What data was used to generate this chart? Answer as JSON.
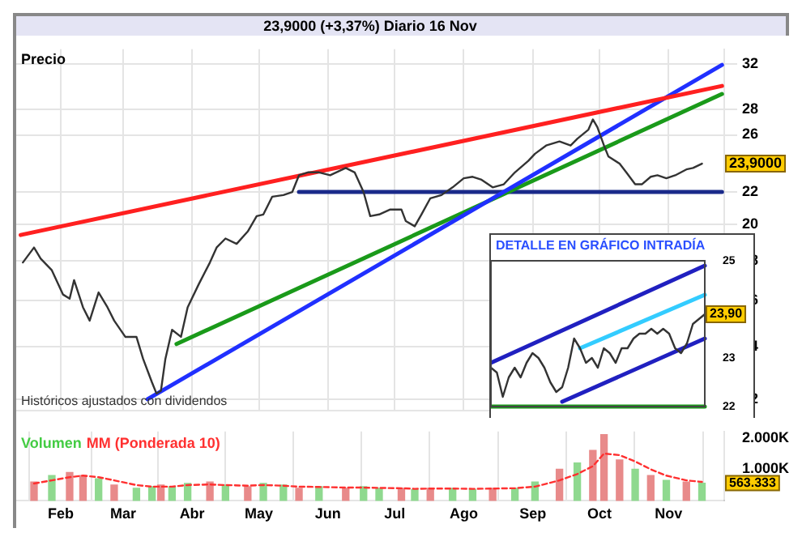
{
  "chart_data": [
    {
      "type": "line",
      "title": "23,9000 (+3,37%)   Diario  16 Nov",
      "ylabel": "Precio",
      "log": "y",
      "grid": true,
      "tick_labels": "y",
      "marker": "none",
      "xlim": [
        "--01-12",
        "--11-26"
      ],
      "xticks": [
        {
          "value": "--02-01",
          "label": "Feb"
        },
        {
          "value": "--03-01",
          "label": "Mar"
        },
        {
          "value": "--04-01",
          "label": "Abr"
        },
        {
          "value": "--05-01",
          "label": "May"
        },
        {
          "value": "--06-01",
          "label": "Jun"
        },
        {
          "value": "--07-01",
          "label": "Jul"
        },
        {
          "value": "--08-01",
          "label": "Ago"
        },
        {
          "value": "--09-01",
          "label": "Sep"
        },
        {
          "value": "--10-01",
          "label": "Oct"
        },
        {
          "value": "--11-01",
          "label": "Nov"
        }
      ],
      "ylim": [
        11.6,
        33.4
      ],
      "yticks": [
        12,
        14,
        16,
        18,
        20,
        22,
        26,
        28,
        32
      ],
      "series": [
        {
          "color": "#333333",
          "x": [
            "--01-15",
            "--01-20",
            "--01-23",
            "--01-28",
            "--02-02",
            "--02-05",
            "--02-07",
            "--02-11",
            "--02-14",
            "--02-18",
            "--02-22",
            "--02-25",
            "--03-02",
            "--03-07",
            "--03-10",
            "--03-14",
            "--03-16",
            "--03-18",
            "--03-20",
            "--03-23",
            "--03-27",
            "--03-30",
            "--04-04",
            "--04-09",
            "--04-12",
            "--04-16",
            "--04-21",
            "--04-26",
            "--04-30",
            "--05-03",
            "--05-07",
            "--05-12",
            "--05-16",
            "--05-19",
            "--05-23",
            "--05-28",
            "--06-02",
            "--06-09",
            "--06-13",
            "--06-17",
            "--06-20",
            "--06-24",
            "--06-29",
            "--07-04",
            "--07-06",
            "--07-10",
            "--07-13",
            "--07-17",
            "--07-22",
            "--07-27",
            "--08-01",
            "--08-05",
            "--08-09",
            "--08-14",
            "--08-19",
            "--08-24",
            "--08-30",
            "--09-02",
            "--09-07",
            "--09-13",
            "--09-18",
            "--09-21",
            "--09-26",
            "--09-28",
            "--09-30",
            "--10-03",
            "--10-05",
            "--10-10",
            "--10-13",
            "--10-17",
            "--10-20",
            "--10-24",
            "--10-27",
            "--10-31",
            "--11-04",
            "--11-09",
            "--11-12",
            "--11-16"
          ],
          "values": [
            17.9,
            18.7,
            18.1,
            17.5,
            16.3,
            16.1,
            17.0,
            15.7,
            15.1,
            16.4,
            15.7,
            15.1,
            14.4,
            14.4,
            13.5,
            12.6,
            12.2,
            12.3,
            13.5,
            14.7,
            14.4,
            15.7,
            16.8,
            17.9,
            18.7,
            19.2,
            18.9,
            19.6,
            20.5,
            20.6,
            21.7,
            21.8,
            22.0,
            23.1,
            23.3,
            23.3,
            23.1,
            23.6,
            23.3,
            22.0,
            20.5,
            20.6,
            20.9,
            20.9,
            20.2,
            19.9,
            20.6,
            21.6,
            21.8,
            22.3,
            22.9,
            23.0,
            22.8,
            22.3,
            22.5,
            23.3,
            24.1,
            24.6,
            25.2,
            25.5,
            25.2,
            25.7,
            26.4,
            27.2,
            26.6,
            25.2,
            24.4,
            23.9,
            23.3,
            22.5,
            22.5,
            23.0,
            23.1,
            22.9,
            23.1,
            23.5,
            23.6,
            23.9
          ]
        },
        {
          "color": "#ff2020",
          "x": [
            "--01-14",
            "--11-25"
          ],
          "values": [
            19.4,
            30.0
          ]
        },
        {
          "color": "#2030ff",
          "x": [
            "--03-12",
            "--11-25"
          ],
          "values": [
            12.0,
            31.9
          ]
        },
        {
          "color": "#1a9a1a",
          "x": [
            "--03-25",
            "--11-25"
          ],
          "values": [
            14.1,
            29.3
          ]
        },
        {
          "color": "#1a2a8a",
          "x": [
            "--05-19",
            "--11-25"
          ],
          "values": [
            22.0,
            22.0
          ]
        }
      ],
      "annotations": [
        "23,9000",
        "Históricos ajustados con dividendos"
      ]
    },
    {
      "type": "line",
      "title": "DETALLE EN GRÁFICO INTRADÍA",
      "tick_labels": "y",
      "marker": "none",
      "categories": [
        null,
        null,
        null,
        null,
        null,
        null,
        null,
        null,
        null,
        null,
        null,
        null,
        null,
        null,
        null,
        null,
        null,
        null,
        null,
        null,
        null,
        null,
        null,
        null,
        null,
        null,
        null,
        null,
        null,
        null,
        null,
        null,
        null,
        null,
        null,
        null,
        null
      ],
      "ylim": [
        22,
        25
      ],
      "yticks": [
        22,
        23,
        25
      ],
      "series": [
        {
          "color": "#333333",
          "values": [
            22.8,
            22.7,
            22.2,
            22.6,
            22.8,
            22.6,
            22.9,
            23.1,
            23.0,
            22.8,
            22.5,
            22.3,
            22.4,
            22.8,
            23.4,
            23.2,
            22.9,
            23.0,
            22.8,
            23.2,
            23.1,
            22.9,
            23.2,
            23.2,
            23.4,
            23.5,
            23.5,
            23.6,
            23.5,
            23.6,
            23.5,
            23.2,
            23.1,
            23.3,
            23.7,
            23.8,
            23.9
          ]
        },
        {
          "color": "#2020c0",
          "values": [
            22.9,
            null,
            null,
            null,
            null,
            null,
            null,
            null,
            null,
            null,
            null,
            null,
            null,
            null,
            null,
            null,
            null,
            null,
            null,
            null,
            null,
            null,
            null,
            null,
            null,
            null,
            null,
            null,
            null,
            null,
            null,
            null,
            null,
            null,
            null,
            null,
            24.9
          ]
        },
        {
          "color": "#2020c0",
          "values": [
            null,
            null,
            null,
            null,
            null,
            null,
            null,
            null,
            null,
            null,
            null,
            null,
            22.1,
            null,
            null,
            null,
            null,
            null,
            null,
            null,
            null,
            null,
            null,
            null,
            null,
            null,
            null,
            null,
            null,
            null,
            null,
            null,
            null,
            null,
            null,
            null,
            23.4
          ]
        },
        {
          "color": "#33ccff",
          "values": [
            null,
            null,
            null,
            null,
            null,
            null,
            null,
            null,
            null,
            null,
            null,
            null,
            null,
            null,
            null,
            23.2,
            null,
            null,
            null,
            null,
            null,
            null,
            null,
            null,
            null,
            null,
            null,
            null,
            null,
            null,
            null,
            null,
            null,
            null,
            null,
            null,
            24.3
          ]
        },
        {
          "color": "#1a9a1a",
          "values": [
            22.0,
            null,
            null,
            null,
            null,
            null,
            null,
            null,
            null,
            null,
            null,
            null,
            null,
            null,
            null,
            null,
            null,
            null,
            null,
            null,
            null,
            null,
            null,
            null,
            null,
            null,
            null,
            null,
            null,
            null,
            null,
            null,
            null,
            null,
            null,
            null,
            22.0
          ]
        }
      ],
      "annotations": [
        "23,90"
      ]
    },
    {
      "type": "bar",
      "grid": "x",
      "marker": "none",
      "xlim": [
        "--01-12",
        "--11-26"
      ],
      "xticks": [
        {
          "value": "--02-01",
          "label": "Feb"
        },
        {
          "value": "--03-01",
          "label": "Mar"
        },
        {
          "value": "--04-01",
          "label": "Abr"
        },
        {
          "value": "--05-01",
          "label": "May"
        },
        {
          "value": "--06-01",
          "label": "Jun"
        },
        {
          "value": "--07-01",
          "label": "Jul"
        },
        {
          "value": "--08-01",
          "label": "Ago"
        },
        {
          "value": "--09-01",
          "label": "Sep"
        },
        {
          "value": "--10-01",
          "label": "Oct"
        },
        {
          "value": "--11-01",
          "label": "Nov"
        }
      ],
      "ylim": [
        0,
        2200
      ],
      "yticks": [
        {
          "value": 1000,
          "label": "1.000K"
        },
        {
          "value": 2000,
          "label": "2.000K"
        }
      ],
      "series": [
        {
          "name": "Volumen",
          "color": "#44cc44",
          "x": [
            "--01-20",
            "--01-28",
            "--02-05",
            "--02-11",
            "--02-18",
            "--02-25",
            "--03-07",
            "--03-14",
            "--03-18",
            "--03-23",
            "--03-30",
            "--04-09",
            "--04-16",
            "--04-26",
            "--05-03",
            "--05-12",
            "--05-19",
            "--05-28",
            "--06-09",
            "--06-17",
            "--06-24",
            "--07-04",
            "--07-10",
            "--07-17",
            "--07-27",
            "--08-05",
            "--08-14",
            "--08-24",
            "--09-02",
            "--09-13",
            "--09-21",
            "--09-28",
            "--10-03",
            "--10-10",
            "--10-17",
            "--10-24",
            "--10-31",
            "--11-09",
            "--11-16"
          ],
          "values": [
            600,
            800,
            900,
            800,
            700,
            500,
            400,
            450,
            500,
            450,
            550,
            600,
            500,
            450,
            550,
            500,
            400,
            450,
            400,
            450,
            400,
            400,
            350,
            400,
            400,
            350,
            400,
            400,
            600,
            1000,
            1200,
            1600,
            2100,
            1300,
            1000,
            800,
            650,
            600,
            560
          ],
          "colors": [
            "#e88a8a",
            "#8fd98f",
            "#e88a8a",
            "#e88a8a",
            "#8fd98f",
            "#e88a8a",
            "#8fd98f",
            "#8fd98f",
            "#e88a8a",
            "#8fd98f",
            "#8fd98f",
            "#e88a8a",
            "#8fd98f",
            "#e88a8a",
            "#8fd98f",
            "#8fd98f",
            "#e88a8a",
            "#8fd98f",
            "#e88a8a",
            "#8fd98f",
            "#8fd98f",
            "#e88a8a",
            "#8fd98f",
            "#e88a8a",
            "#8fd98f",
            "#8fd98f",
            "#e88a8a",
            "#8fd98f",
            "#8fd98f",
            "#e88a8a",
            "#8fd98f",
            "#e88a8a",
            "#e88a8a",
            "#e88a8a",
            "#8fd98f",
            "#e88a8a",
            "#8fd98f",
            "#e88a8a",
            "#8fd98f"
          ]
        },
        {
          "name": "MM (Ponderada 10)",
          "type": "line",
          "line_style": "dashed",
          "color": "#ff3030",
          "x": [
            "--01-20",
            "--01-28",
            "--02-05",
            "--02-11",
            "--02-18",
            "--02-25",
            "--03-07",
            "--03-14",
            "--03-18",
            "--03-23",
            "--03-30",
            "--04-09",
            "--04-16",
            "--04-26",
            "--05-03",
            "--05-12",
            "--05-19",
            "--05-28",
            "--06-09",
            "--06-17",
            "--06-24",
            "--07-04",
            "--07-10",
            "--07-17",
            "--07-27",
            "--08-05",
            "--08-14",
            "--08-24",
            "--09-02",
            "--09-13",
            "--09-21",
            "--09-28",
            "--10-03",
            "--10-10",
            "--10-17",
            "--10-24",
            "--10-31",
            "--11-09",
            "--11-16"
          ],
          "values": [
            550,
            650,
            750,
            800,
            750,
            650,
            500,
            450,
            450,
            450,
            500,
            520,
            500,
            480,
            500,
            480,
            450,
            440,
            420,
            420,
            410,
            400,
            380,
            390,
            390,
            380,
            390,
            400,
            450,
            650,
            850,
            1100,
            1500,
            1450,
            1250,
            1000,
            800,
            650,
            600
          ]
        }
      ],
      "annotations": [
        "563.333"
      ]
    }
  ]
}
